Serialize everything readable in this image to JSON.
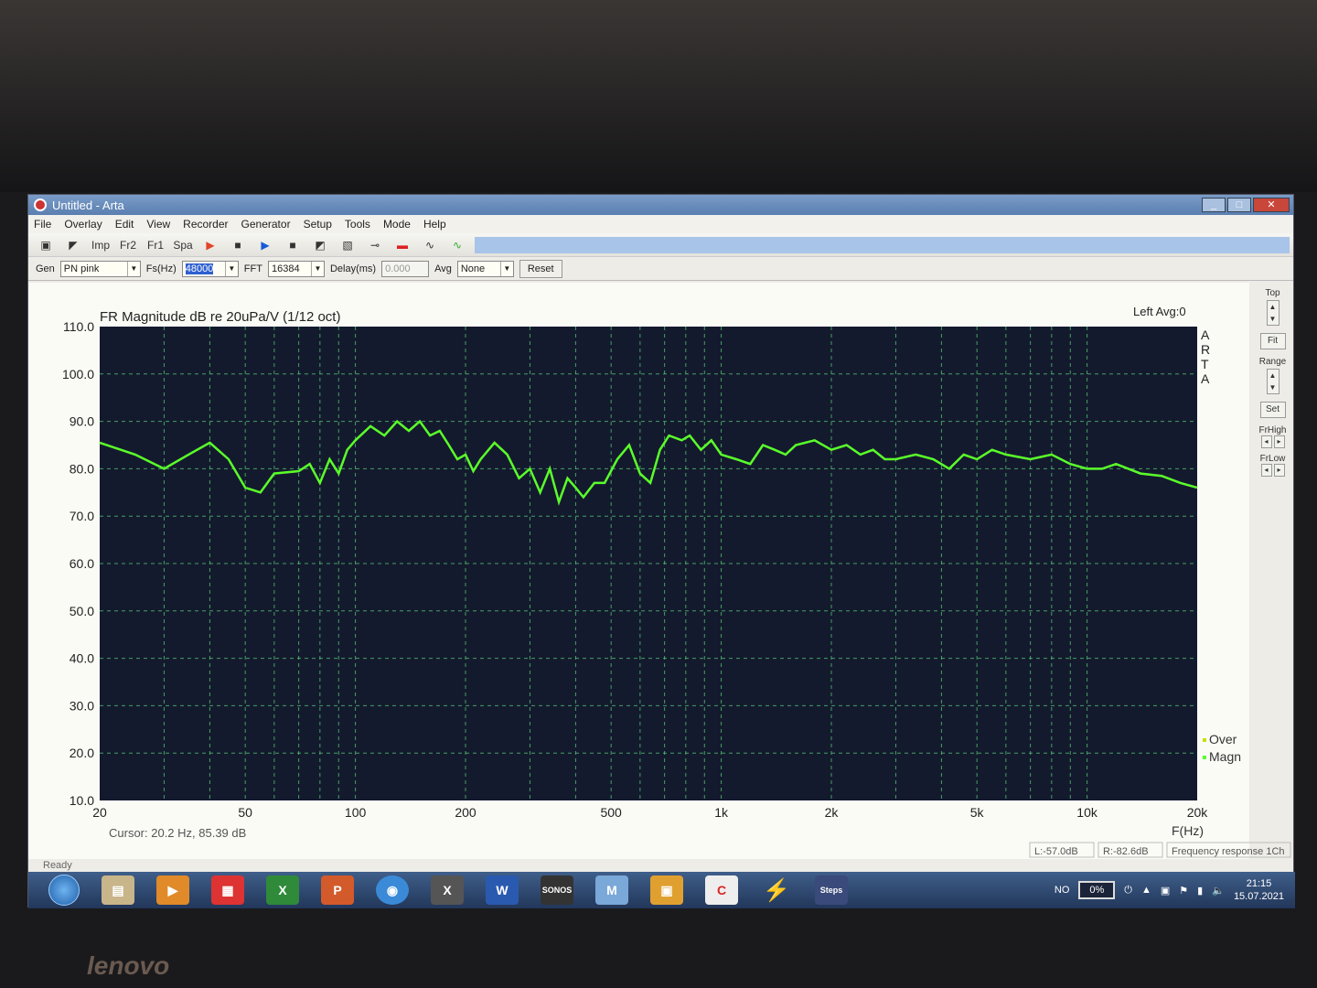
{
  "window": {
    "title": "Untitled - Arta",
    "controls": [
      "_",
      "□",
      "✕"
    ]
  },
  "menu": [
    "File",
    "Overlay",
    "Edit",
    "View",
    "Recorder",
    "Generator",
    "Setup",
    "Tools",
    "Mode",
    "Help"
  ],
  "toolbar": [
    "Imp",
    "Fr2",
    "Fr1",
    "Spa"
  ],
  "params": {
    "gen_label": "Gen",
    "gen_value": "PN pink",
    "fs_label": "Fs(Hz)",
    "fs_value": "48000",
    "fft_label": "FFT",
    "fft_value": "16384",
    "delay_label": "Delay(ms)",
    "delay_value": "0.000",
    "avg_label": "Avg",
    "avg_value": "None",
    "reset": "Reset"
  },
  "right_panel": {
    "top": "Top",
    "fit": "Fit",
    "range": "Range",
    "set": "Set",
    "frhigh": "FrHigh",
    "frlow": "FrLow"
  },
  "plot": {
    "channel_info": "Left  Avg:0",
    "arta_letters": [
      "A",
      "R",
      "T",
      "A"
    ],
    "legend": [
      {
        "label": "Over",
        "color": "#c8e000"
      },
      {
        "label": "Magn",
        "color": "#5aff2a"
      }
    ],
    "cursor": "Cursor:   20.2 Hz, 85.39 dB",
    "l_level": "L:-57.0dB",
    "r_level": "R:-82.6dB",
    "mode_info": "Frequency response 1Ch"
  },
  "status": "Ready",
  "taskbar": {
    "lang": "NO",
    "battery": "0%",
    "time": "21:15",
    "date": "15.07.2021"
  },
  "colors": {
    "plot_bg": "#141a2e",
    "grid": "#5ad87a",
    "curve": "#5aff2a"
  },
  "chart_data": {
    "type": "line",
    "title": "FR Magnitude dB re 20uPa/V (1/12 oct)",
    "xlabel": "F(Hz)",
    "x_scale": "log",
    "xlim": [
      20,
      20000
    ],
    "ylim": [
      10,
      110
    ],
    "grid": true,
    "legend_placement": "bottom-right",
    "xticks": [
      {
        "v": 20,
        "l": "20"
      },
      {
        "v": 50,
        "l": "50"
      },
      {
        "v": 100,
        "l": "100"
      },
      {
        "v": 200,
        "l": "200"
      },
      {
        "v": 500,
        "l": "500"
      },
      {
        "v": 1000,
        "l": "1k"
      },
      {
        "v": 2000,
        "l": "2k"
      },
      {
        "v": 5000,
        "l": "5k"
      },
      {
        "v": 10000,
        "l": "10k"
      },
      {
        "v": 20000,
        "l": "20k"
      }
    ],
    "yticks": [
      "10.0",
      "20.0",
      "30.0",
      "40.0",
      "50.0",
      "60.0",
      "70.0",
      "80.0",
      "90.0",
      "100.0",
      "110.0"
    ],
    "series": [
      {
        "name": "Magn",
        "x": [
          20,
          25,
          30,
          35,
          40,
          45,
          50,
          55,
          60,
          70,
          75,
          80,
          85,
          90,
          95,
          100,
          110,
          120,
          130,
          140,
          150,
          160,
          170,
          180,
          190,
          200,
          210,
          220,
          240,
          260,
          280,
          300,
          320,
          340,
          360,
          380,
          400,
          420,
          450,
          480,
          520,
          560,
          600,
          640,
          680,
          720,
          780,
          820,
          880,
          940,
          1000,
          1100,
          1200,
          1300,
          1400,
          1500,
          1600,
          1800,
          2000,
          2200,
          2400,
          2600,
          2800,
          3000,
          3400,
          3800,
          4200,
          4600,
          5000,
          5500,
          6000,
          7000,
          8000,
          9000,
          10000,
          11000,
          12000,
          14000,
          16000,
          18000,
          20000
        ],
        "y": [
          85.5,
          83,
          80,
          83,
          85.5,
          82,
          76,
          75,
          79,
          79.5,
          81,
          77,
          82,
          79,
          84,
          86,
          89,
          87,
          90,
          88,
          90,
          87,
          88,
          85,
          82,
          83,
          79.5,
          82,
          85.5,
          83,
          78,
          80,
          75,
          80,
          73,
          78,
          76,
          74,
          77,
          77,
          82,
          85,
          79,
          77,
          84,
          87,
          86,
          87,
          84,
          86,
          83,
          82,
          81,
          85,
          84,
          83,
          85,
          86,
          84,
          85,
          83,
          84,
          82,
          82,
          83,
          82,
          80,
          83,
          82,
          84,
          83,
          82,
          83,
          81,
          80,
          80,
          81,
          79,
          78.5,
          77,
          76
        ]
      }
    ]
  }
}
